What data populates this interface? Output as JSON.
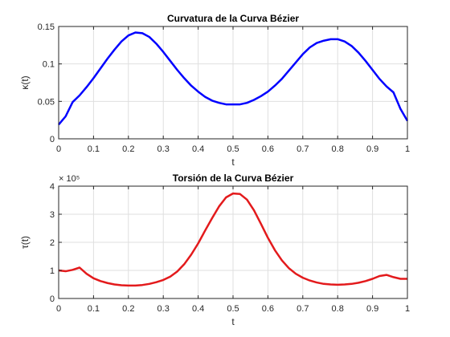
{
  "figure": {
    "background": "#ffffff"
  },
  "chart_data": [
    {
      "type": "line",
      "title": "Curvatura de la Curva Bézier",
      "xlabel": "t",
      "ylabel": "κ(t)",
      "xlim": [
        0,
        1
      ],
      "ylim": [
        0,
        0.15
      ],
      "xticks": [
        0,
        0.1,
        0.2,
        0.3,
        0.4,
        0.5,
        0.6,
        0.7,
        0.8,
        0.9,
        1
      ],
      "xtick_labels": [
        "0",
        "0.1",
        "0.2",
        "0.3",
        "0.4",
        "0.5",
        "0.6",
        "0.7",
        "0.8",
        "0.9",
        "1"
      ],
      "yticks": [
        0,
        0.05,
        0.1,
        0.15
      ],
      "ytick_labels": [
        "0",
        "0.05",
        "0.1",
        "0.15"
      ],
      "grid": true,
      "series": [
        {
          "color": "#0000ff",
          "x": [
            0,
            0.02,
            0.04,
            0.06,
            0.08,
            0.1,
            0.12,
            0.14,
            0.16,
            0.18,
            0.2,
            0.22,
            0.24,
            0.26,
            0.28,
            0.3,
            0.32,
            0.34,
            0.36,
            0.38,
            0.4,
            0.42,
            0.44,
            0.46,
            0.48,
            0.5,
            0.52,
            0.54,
            0.56,
            0.58,
            0.6,
            0.62,
            0.64,
            0.66,
            0.68,
            0.7,
            0.72,
            0.74,
            0.76,
            0.78,
            0.8,
            0.82,
            0.84,
            0.86,
            0.88,
            0.9,
            0.92,
            0.94,
            0.96,
            0.98,
            1
          ],
          "y": [
            0.019,
            0.03,
            0.049,
            0.058,
            0.069,
            0.081,
            0.094,
            0.107,
            0.119,
            0.13,
            0.138,
            0.142,
            0.141,
            0.136,
            0.127,
            0.116,
            0.104,
            0.092,
            0.081,
            0.071,
            0.063,
            0.056,
            0.051,
            0.048,
            0.046,
            0.046,
            0.046,
            0.048,
            0.052,
            0.057,
            0.063,
            0.071,
            0.08,
            0.091,
            0.102,
            0.113,
            0.122,
            0.128,
            0.131,
            0.133,
            0.133,
            0.13,
            0.124,
            0.115,
            0.104,
            0.092,
            0.08,
            0.07,
            0.062,
            0.04,
            0.024
          ]
        }
      ]
    },
    {
      "type": "line",
      "title": "Torsión de la Curva Bézier",
      "xlabel": "t",
      "ylabel": "τ(t)",
      "exponent_label": "× 10⁵",
      "xlim": [
        0,
        1
      ],
      "ylim": [
        0,
        4
      ],
      "xticks": [
        0,
        0.1,
        0.2,
        0.3,
        0.4,
        0.5,
        0.6,
        0.7,
        0.8,
        0.9,
        1
      ],
      "xtick_labels": [
        "0",
        "0.1",
        "0.2",
        "0.3",
        "0.4",
        "0.5",
        "0.6",
        "0.7",
        "0.8",
        "0.9",
        "1"
      ],
      "yticks": [
        0,
        1,
        2,
        3,
        4
      ],
      "ytick_labels": [
        "0",
        "1",
        "2",
        "3",
        "4"
      ],
      "grid": true,
      "series": [
        {
          "color": "#e31a1c",
          "x": [
            0,
            0.02,
            0.04,
            0.06,
            0.08,
            0.1,
            0.12,
            0.14,
            0.16,
            0.18,
            0.2,
            0.22,
            0.24,
            0.26,
            0.28,
            0.3,
            0.32,
            0.34,
            0.36,
            0.38,
            0.4,
            0.42,
            0.44,
            0.46,
            0.48,
            0.5,
            0.52,
            0.54,
            0.56,
            0.58,
            0.6,
            0.62,
            0.64,
            0.66,
            0.68,
            0.7,
            0.72,
            0.74,
            0.76,
            0.78,
            0.8,
            0.82,
            0.84,
            0.86,
            0.88,
            0.9,
            0.92,
            0.94,
            0.96,
            0.98,
            1
          ],
          "y": [
            1.0,
            0.97,
            1.02,
            1.1,
            0.88,
            0.72,
            0.62,
            0.55,
            0.5,
            0.47,
            0.46,
            0.46,
            0.48,
            0.52,
            0.58,
            0.66,
            0.78,
            0.96,
            1.22,
            1.56,
            1.96,
            2.42,
            2.86,
            3.28,
            3.6,
            3.74,
            3.72,
            3.52,
            3.14,
            2.66,
            2.16,
            1.72,
            1.36,
            1.08,
            0.88,
            0.74,
            0.64,
            0.57,
            0.52,
            0.5,
            0.49,
            0.5,
            0.52,
            0.56,
            0.62,
            0.7,
            0.8,
            0.84,
            0.76,
            0.7,
            0.7
          ]
        }
      ]
    }
  ]
}
